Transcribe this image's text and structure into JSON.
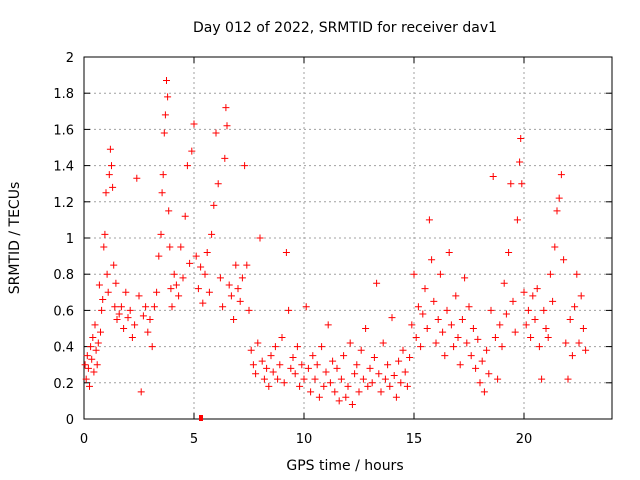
{
  "chart_data": {
    "type": "scatter",
    "title": "Day 012 of 2022, SRMTID for receiver dav1",
    "xlabel": "GPS time / hours",
    "ylabel": "SRMTID / TECUs",
    "xlim": [
      0,
      24
    ],
    "ylim": [
      0,
      2
    ],
    "xticks": [
      0,
      5,
      10,
      15,
      20
    ],
    "xtick_labels": [
      "0",
      "5",
      "10",
      "15",
      "20"
    ],
    "yticks": [
      0,
      0.2,
      0.4,
      0.6,
      0.8,
      1,
      1.2,
      1.4,
      1.6,
      1.8,
      2
    ],
    "ytick_labels": [
      "0",
      "0.2",
      "0.4",
      "0.6",
      "0.8",
      "1",
      "1.2",
      "1.4",
      "1.6",
      "1.8",
      "2"
    ],
    "grid": true,
    "marker": "+",
    "color": "#ff0000",
    "series": [
      {
        "name": "SRMTID",
        "points": [
          [
            0.05,
            0.3
          ],
          [
            0.1,
            0.22
          ],
          [
            0.15,
            0.35
          ],
          [
            0.2,
            0.28
          ],
          [
            0.25,
            0.18
          ],
          [
            0.3,
            0.4
          ],
          [
            0.35,
            0.33
          ],
          [
            0.4,
            0.45
          ],
          [
            0.45,
            0.26
          ],
          [
            0.5,
            0.52
          ],
          [
            0.55,
            0.38
          ],
          [
            0.6,
            0.3
          ],
          [
            0.65,
            0.42
          ],
          [
            0.7,
            0.74
          ],
          [
            0.75,
            0.48
          ],
          [
            0.8,
            0.6
          ],
          [
            0.85,
            0.66
          ],
          [
            0.9,
            0.95
          ],
          [
            0.95,
            1.02
          ],
          [
            1.0,
            1.25
          ],
          [
            1.05,
            0.8
          ],
          [
            1.1,
            0.7
          ],
          [
            1.15,
            1.35
          ],
          [
            1.2,
            1.49
          ],
          [
            1.25,
            1.4
          ],
          [
            1.3,
            1.28
          ],
          [
            1.35,
            0.85
          ],
          [
            1.4,
            0.62
          ],
          [
            1.45,
            0.75
          ],
          [
            1.5,
            0.55
          ],
          [
            1.6,
            0.58
          ],
          [
            1.7,
            0.62
          ],
          [
            1.8,
            0.5
          ],
          [
            1.9,
            0.7
          ],
          [
            2.0,
            0.56
          ],
          [
            2.1,
            0.6
          ],
          [
            2.2,
            0.45
          ],
          [
            2.3,
            0.52
          ],
          [
            2.4,
            1.33
          ],
          [
            2.5,
            0.68
          ],
          [
            2.6,
            0.15
          ],
          [
            2.7,
            0.57
          ],
          [
            2.8,
            0.62
          ],
          [
            2.9,
            0.48
          ],
          [
            3.0,
            0.55
          ],
          [
            3.1,
            0.4
          ],
          [
            3.2,
            0.62
          ],
          [
            3.3,
            0.7
          ],
          [
            3.4,
            0.9
          ],
          [
            3.5,
            1.02
          ],
          [
            3.55,
            1.25
          ],
          [
            3.6,
            1.35
          ],
          [
            3.65,
            1.58
          ],
          [
            3.7,
            1.68
          ],
          [
            3.75,
            1.87
          ],
          [
            3.8,
            1.78
          ],
          [
            3.85,
            1.15
          ],
          [
            3.9,
            0.95
          ],
          [
            3.95,
            0.72
          ],
          [
            4.0,
            0.62
          ],
          [
            4.1,
            0.8
          ],
          [
            4.2,
            0.74
          ],
          [
            4.3,
            0.68
          ],
          [
            4.4,
            0.95
          ],
          [
            4.5,
            0.78
          ],
          [
            4.6,
            1.12
          ],
          [
            4.7,
            1.4
          ],
          [
            4.8,
            0.86
          ],
          [
            4.9,
            1.48
          ],
          [
            5.0,
            1.63
          ],
          [
            5.1,
            0.9
          ],
          [
            5.2,
            0.72
          ],
          [
            5.3,
            0.84
          ],
          [
            5.4,
            0.64
          ],
          [
            5.5,
            0.8
          ],
          [
            5.6,
            0.92
          ],
          [
            5.7,
            0.7
          ],
          [
            5.8,
            1.02
          ],
          [
            5.9,
            1.18
          ],
          [
            6.0,
            1.58
          ],
          [
            6.1,
            1.3
          ],
          [
            6.2,
            0.78
          ],
          [
            6.3,
            0.62
          ],
          [
            6.4,
            1.44
          ],
          [
            6.45,
            1.72
          ],
          [
            6.5,
            1.62
          ],
          [
            6.6,
            0.74
          ],
          [
            6.7,
            0.68
          ],
          [
            6.8,
            0.55
          ],
          [
            6.9,
            0.85
          ],
          [
            7.0,
            0.72
          ],
          [
            7.1,
            0.65
          ],
          [
            7.2,
            0.78
          ],
          [
            7.3,
            1.4
          ],
          [
            7.4,
            0.85
          ],
          [
            7.5,
            0.6
          ],
          [
            7.6,
            0.38
          ],
          [
            7.7,
            0.3
          ],
          [
            7.8,
            0.25
          ],
          [
            7.9,
            0.42
          ],
          [
            8.0,
            1.0
          ],
          [
            8.1,
            0.32
          ],
          [
            8.2,
            0.22
          ],
          [
            8.3,
            0.28
          ],
          [
            8.4,
            0.18
          ],
          [
            8.5,
            0.35
          ],
          [
            8.6,
            0.26
          ],
          [
            8.7,
            0.4
          ],
          [
            8.8,
            0.22
          ],
          [
            8.9,
            0.3
          ],
          [
            9.0,
            0.45
          ],
          [
            9.1,
            0.2
          ],
          [
            9.2,
            0.92
          ],
          [
            9.3,
            0.6
          ],
          [
            9.4,
            0.28
          ],
          [
            9.5,
            0.34
          ],
          [
            9.6,
            0.25
          ],
          [
            9.7,
            0.4
          ],
          [
            9.8,
            0.18
          ],
          [
            9.9,
            0.3
          ],
          [
            10.0,
            0.22
          ],
          [
            10.1,
            0.62
          ],
          [
            10.2,
            0.28
          ],
          [
            10.3,
            0.15
          ],
          [
            10.4,
            0.35
          ],
          [
            10.5,
            0.22
          ],
          [
            10.6,
            0.3
          ],
          [
            10.7,
            0.12
          ],
          [
            10.8,
            0.4
          ],
          [
            10.9,
            0.18
          ],
          [
            11.0,
            0.26
          ],
          [
            11.1,
            0.52
          ],
          [
            11.2,
            0.2
          ],
          [
            11.3,
            0.32
          ],
          [
            11.4,
            0.15
          ],
          [
            11.5,
            0.28
          ],
          [
            11.6,
            0.1
          ],
          [
            11.7,
            0.22
          ],
          [
            11.8,
            0.35
          ],
          [
            11.9,
            0.12
          ],
          [
            12.0,
            0.18
          ],
          [
            12.1,
            0.42
          ],
          [
            12.2,
            0.08
          ],
          [
            12.3,
            0.25
          ],
          [
            12.4,
            0.3
          ],
          [
            12.5,
            0.15
          ],
          [
            12.6,
            0.38
          ],
          [
            12.7,
            0.22
          ],
          [
            12.8,
            0.5
          ],
          [
            12.9,
            0.18
          ],
          [
            13.0,
            0.28
          ],
          [
            13.1,
            0.2
          ],
          [
            13.2,
            0.34
          ],
          [
            13.3,
            0.75
          ],
          [
            13.4,
            0.25
          ],
          [
            13.5,
            0.15
          ],
          [
            13.6,
            0.42
          ],
          [
            13.7,
            0.22
          ],
          [
            13.8,
            0.3
          ],
          [
            13.9,
            0.18
          ],
          [
            14.0,
            0.56
          ],
          [
            14.1,
            0.24
          ],
          [
            14.2,
            0.12
          ],
          [
            14.3,
            0.32
          ],
          [
            14.4,
            0.2
          ],
          [
            14.5,
            0.38
          ],
          [
            14.6,
            0.26
          ],
          [
            14.7,
            0.18
          ],
          [
            14.8,
            0.34
          ],
          [
            14.9,
            0.52
          ],
          [
            15.0,
            0.8
          ],
          [
            15.1,
            0.45
          ],
          [
            15.2,
            0.62
          ],
          [
            15.3,
            0.4
          ],
          [
            15.4,
            0.58
          ],
          [
            15.5,
            0.72
          ],
          [
            15.6,
            0.5
          ],
          [
            15.7,
            1.1
          ],
          [
            15.8,
            0.88
          ],
          [
            15.9,
            0.65
          ],
          [
            16.0,
            0.42
          ],
          [
            16.1,
            0.55
          ],
          [
            16.2,
            0.8
          ],
          [
            16.3,
            0.48
          ],
          [
            16.4,
            0.35
          ],
          [
            16.5,
            0.6
          ],
          [
            16.6,
            0.92
          ],
          [
            16.7,
            0.52
          ],
          [
            16.8,
            0.4
          ],
          [
            16.9,
            0.68
          ],
          [
            17.0,
            0.45
          ],
          [
            17.1,
            0.3
          ],
          [
            17.2,
            0.55
          ],
          [
            17.3,
            0.78
          ],
          [
            17.4,
            0.42
          ],
          [
            17.5,
            0.62
          ],
          [
            17.6,
            0.35
          ],
          [
            17.7,
            0.5
          ],
          [
            17.8,
            0.28
          ],
          [
            17.9,
            0.44
          ],
          [
            18.0,
            0.2
          ],
          [
            18.1,
            0.32
          ],
          [
            18.2,
            0.15
          ],
          [
            18.3,
            0.38
          ],
          [
            18.4,
            0.25
          ],
          [
            18.5,
            0.6
          ],
          [
            18.6,
            1.34
          ],
          [
            18.7,
            0.45
          ],
          [
            18.8,
            0.22
          ],
          [
            18.9,
            0.52
          ],
          [
            19.0,
            0.4
          ],
          [
            19.1,
            0.75
          ],
          [
            19.2,
            0.58
          ],
          [
            19.3,
            0.92
          ],
          [
            19.4,
            1.3
          ],
          [
            19.5,
            0.65
          ],
          [
            19.6,
            0.48
          ],
          [
            19.7,
            1.1
          ],
          [
            19.8,
            1.42
          ],
          [
            19.85,
            1.55
          ],
          [
            19.9,
            1.3
          ],
          [
            20.0,
            0.7
          ],
          [
            20.1,
            0.52
          ],
          [
            20.2,
            0.6
          ],
          [
            20.3,
            0.45
          ],
          [
            20.4,
            0.68
          ],
          [
            20.5,
            0.55
          ],
          [
            20.6,
            0.72
          ],
          [
            20.7,
            0.4
          ],
          [
            20.8,
            0.22
          ],
          [
            20.9,
            0.6
          ],
          [
            21.0,
            0.5
          ],
          [
            21.1,
            0.45
          ],
          [
            21.2,
            0.8
          ],
          [
            21.3,
            0.65
          ],
          [
            21.4,
            0.95
          ],
          [
            21.5,
            1.15
          ],
          [
            21.6,
            1.22
          ],
          [
            21.7,
            1.35
          ],
          [
            21.8,
            0.88
          ],
          [
            21.9,
            0.42
          ],
          [
            22.0,
            0.22
          ],
          [
            22.1,
            0.55
          ],
          [
            22.2,
            0.35
          ],
          [
            22.3,
            0.62
          ],
          [
            22.4,
            0.8
          ],
          [
            22.5,
            0.42
          ],
          [
            22.6,
            0.68
          ],
          [
            22.7,
            0.5
          ],
          [
            22.8,
            0.38
          ]
        ]
      }
    ]
  }
}
